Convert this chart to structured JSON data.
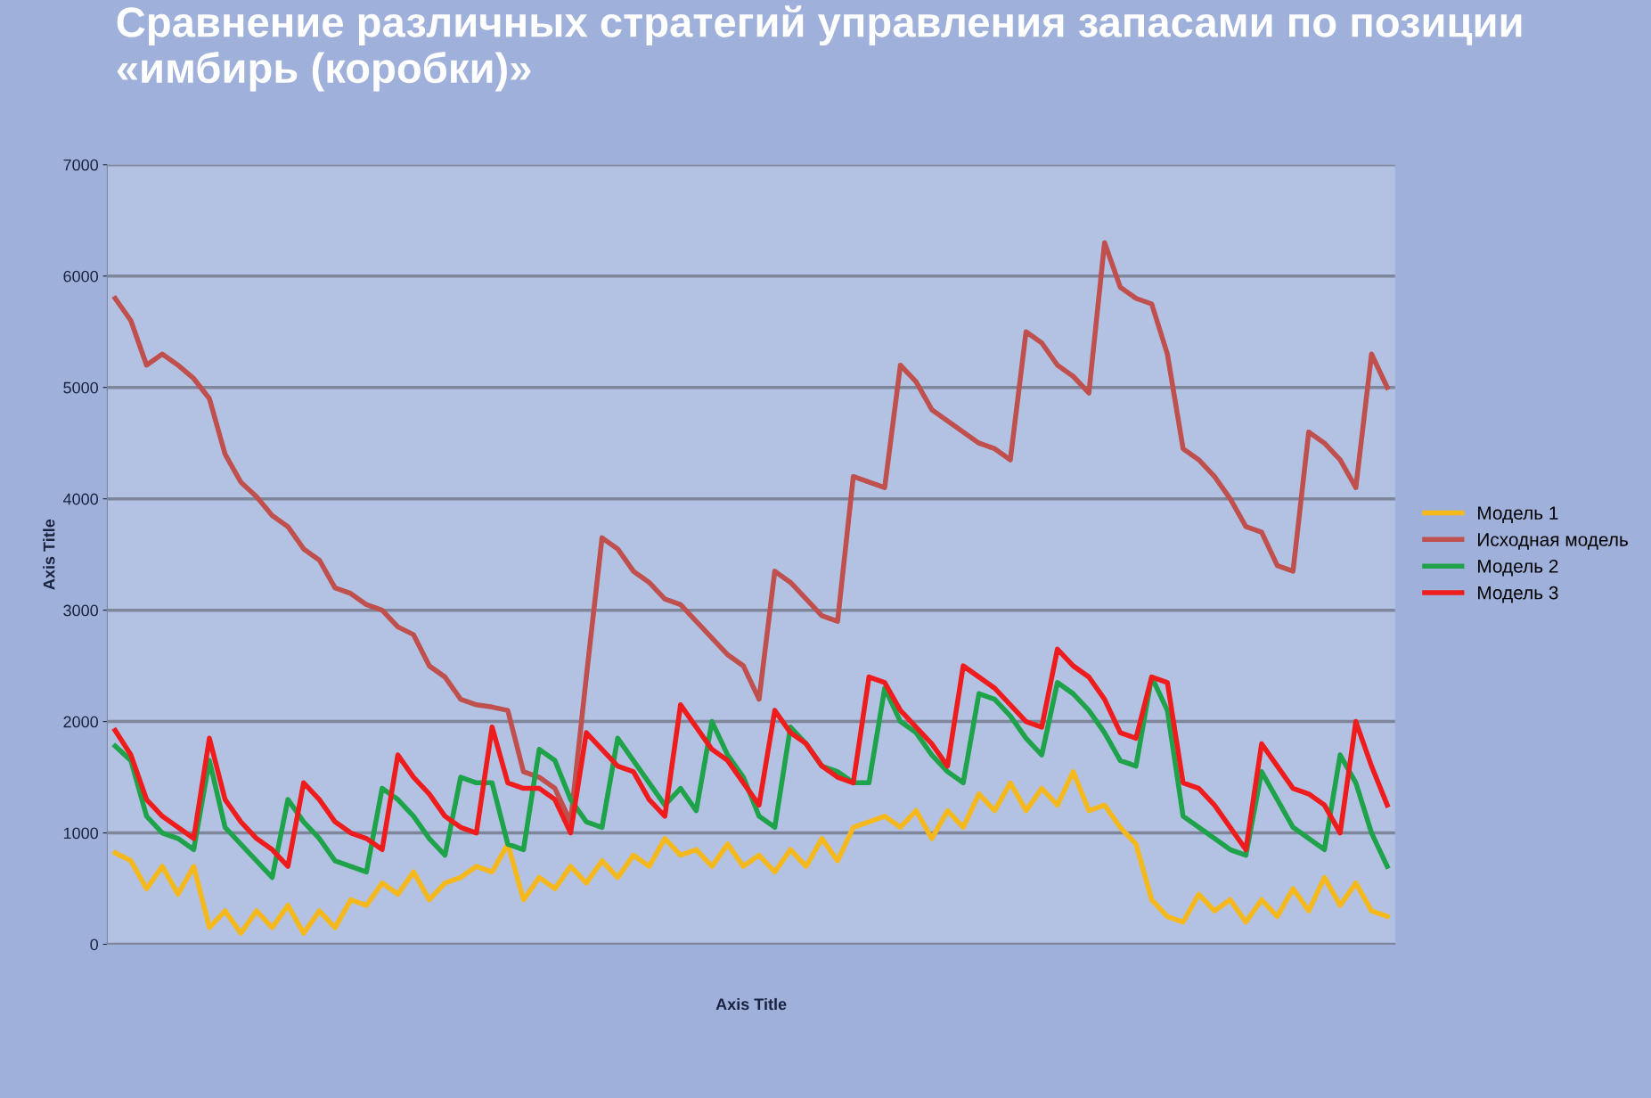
{
  "chart_data": {
    "type": "line",
    "title": "Сравнение различных стратегий управления запасами по позиции «имбирь (коробки)»",
    "xlabel": "Axis Title",
    "ylabel": "Axis Title",
    "categories": [
      null,
      null,
      null,
      null,
      null,
      null,
      null,
      null,
      null,
      null,
      null,
      null,
      null,
      null,
      null,
      null,
      null,
      null,
      null,
      null,
      null,
      null,
      null,
      null,
      null,
      null,
      null,
      null,
      null,
      null,
      null,
      null,
      null,
      null,
      null,
      null,
      null,
      null,
      null,
      null,
      null,
      null,
      null,
      null,
      null,
      null,
      null,
      null,
      null,
      null,
      null,
      null,
      null,
      null,
      null,
      null,
      null,
      null,
      null,
      null,
      null,
      null,
      null,
      null,
      null,
      null,
      null,
      null,
      null,
      null,
      null,
      null,
      null,
      null,
      null,
      null,
      null,
      null,
      null,
      null,
      null,
      null
    ],
    "ylim": [
      0,
      7000
    ],
    "yticks": [
      0,
      1000,
      2000,
      3000,
      4000,
      5000,
      6000,
      7000
    ],
    "grid": "y",
    "legend": "right",
    "series": [
      {
        "name": "Модель 1",
        "color": "#f5b91e",
        "values": [
          820,
          750,
          500,
          700,
          450,
          700,
          150,
          300,
          100,
          300,
          150,
          350,
          100,
          300,
          150,
          400,
          350,
          550,
          450,
          650,
          400,
          550,
          600,
          700,
          650,
          900,
          400,
          600,
          500,
          700,
          550,
          750,
          600,
          800,
          700,
          950,
          800,
          850,
          700,
          900,
          700,
          800,
          650,
          850,
          700,
          950,
          750,
          1050,
          1100,
          1150,
          1050,
          1200,
          950,
          1200,
          1050,
          1350,
          1200,
          1450,
          1200,
          1400,
          1250,
          1550,
          1200,
          1250,
          1050,
          900,
          400,
          250,
          200,
          450,
          300,
          400,
          200,
          400,
          250,
          500,
          300,
          600,
          350,
          550,
          300,
          250
        ]
      },
      {
        "name": "Исходная модель",
        "color": "#c0504d",
        "values": [
          5800,
          5600,
          5200,
          5300,
          5200,
          5080,
          4900,
          4400,
          4150,
          4020,
          3850,
          3750,
          3550,
          3450,
          3200,
          3150,
          3050,
          3000,
          2850,
          2780,
          2500,
          2400,
          2200,
          2150,
          2130,
          2100,
          1550,
          1500,
          1400,
          1100,
          2400,
          3650,
          3550,
          3350,
          3250,
          3100,
          3050,
          2900,
          2750,
          2600,
          2500,
          2200,
          3350,
          3250,
          3100,
          2950,
          2900,
          4200,
          4150,
          4100,
          5200,
          5050,
          4800,
          4700,
          4600,
          4500,
          4450,
          4350,
          5500,
          5400,
          5200,
          5100,
          4950,
          6300,
          5900,
          5800,
          5750,
          5300,
          4450,
          4350,
          4200,
          4000,
          3750,
          3700,
          3400,
          3350,
          4600,
          4500,
          4350,
          4100,
          5300,
          5000
        ]
      },
      {
        "name": "Модель 2",
        "color": "#1fa34a",
        "values": [
          1780,
          1650,
          1150,
          1000,
          950,
          850,
          1650,
          1050,
          900,
          750,
          600,
          1300,
          1100,
          950,
          750,
          700,
          650,
          1400,
          1300,
          1150,
          950,
          800,
          1500,
          1450,
          1450,
          900,
          850,
          1750,
          1650,
          1300,
          1100,
          1050,
          1850,
          1650,
          1450,
          1250,
          1400,
          1200,
          2000,
          1700,
          1500,
          1150,
          1050,
          1950,
          1800,
          1600,
          1550,
          1450,
          1450,
          2300,
          2000,
          1900,
          1700,
          1550,
          1450,
          2250,
          2200,
          2050,
          1850,
          1700,
          2350,
          2250,
          2100,
          1900,
          1650,
          1600,
          2400,
          2100,
          1150,
          1050,
          950,
          850,
          800,
          1550,
          1300,
          1050,
          950,
          850,
          1700,
          1450,
          1000,
          700
        ]
      },
      {
        "name": "Модель 3",
        "color": "#ee1c1c",
        "values": [
          1920,
          1700,
          1300,
          1150,
          1050,
          950,
          1850,
          1300,
          1100,
          950,
          850,
          700,
          1450,
          1300,
          1100,
          1000,
          950,
          850,
          1700,
          1500,
          1350,
          1150,
          1050,
          1000,
          1950,
          1450,
          1400,
          1400,
          1300,
          1000,
          1900,
          1750,
          1600,
          1550,
          1300,
          1150,
          2150,
          1950,
          1750,
          1650,
          1450,
          1250,
          2100,
          1900,
          1800,
          1600,
          1500,
          1450,
          2400,
          2350,
          2100,
          1950,
          1800,
          1600,
          2500,
          2400,
          2300,
          2150,
          2000,
          1950,
          2650,
          2500,
          2400,
          2200,
          1900,
          1850,
          2400,
          2350,
          1450,
          1400,
          1250,
          1050,
          850,
          1800,
          1600,
          1400,
          1350,
          1250,
          1000,
          2000,
          1600,
          1250
        ]
      }
    ]
  }
}
